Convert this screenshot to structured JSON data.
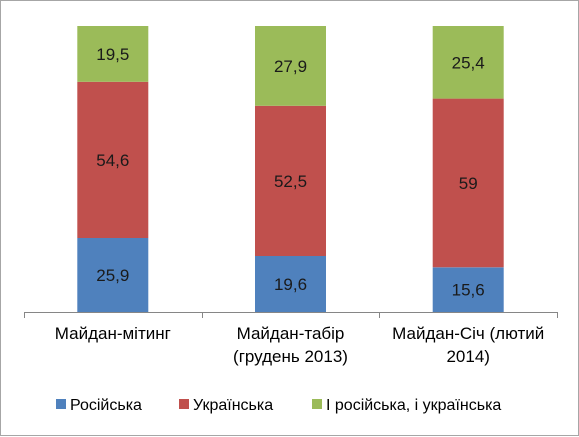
{
  "chart_data": {
    "type": "bar",
    "stacked": true,
    "categories": [
      [
        "Майдан-мітинг"
      ],
      [
        "Майдан-табір",
        "(грудень 2013)"
      ],
      [
        "Майдан-Січ (лютий",
        "2014)"
      ]
    ],
    "series": [
      {
        "name": "Російська",
        "color": "#4f81bd",
        "values": [
          25.9,
          19.6,
          15.6
        ],
        "labels": [
          "25,9",
          "19,6",
          "15,6"
        ]
      },
      {
        "name": "Українська",
        "color": "#c0504d",
        "values": [
          54.6,
          52.5,
          59
        ],
        "labels": [
          "54,6",
          "52,5",
          "59"
        ]
      },
      {
        "name": "І російська, і українська",
        "color": "#9bbb59",
        "values": [
          19.5,
          27.9,
          25.4
        ],
        "labels": [
          "19,5",
          "27,9",
          "25,4"
        ]
      }
    ],
    "ylim": [
      0,
      100
    ],
    "grid": false,
    "legend_position": "bottom"
  }
}
